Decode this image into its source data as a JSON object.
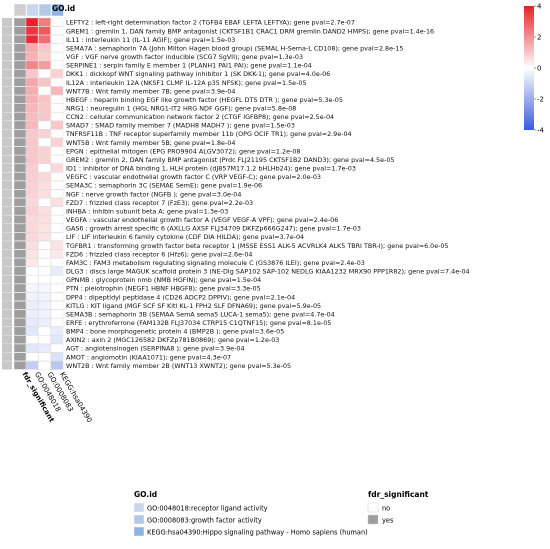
{
  "chart_data": {
    "type": "heatmap",
    "annotation_title": "GO.id",
    "columns": [
      "fdr_significant",
      "GO:0048018",
      "GO:0008083",
      "KEGG:hsa04390"
    ],
    "value_scale": {
      "min": -4,
      "max": 4,
      "ticks": [
        4,
        2,
        0,
        -2,
        -4
      ],
      "low_color": "#3b5bdb",
      "mid_color": "#ffffff",
      "high_color": "#e8202a"
    },
    "rows": [
      {
        "label": "LEFTY2 : left-right determination factor 2 (TGFB4 EBAF LEFTA LEFTYA); gene pval=2.7e-07",
        "fdr": "yes",
        "values": [
          4.0,
          2.4,
          0.0
        ],
        "group": "GO:0048018"
      },
      {
        "label": "GREM1 : gremlin 1, DAN family BMP antagonist (CKTSF1B1 CRAC1 DRM gremlin DAND2 HMPS); gene pval=1.4e-16",
        "fdr": "yes",
        "values": [
          3.6,
          3.0,
          0.0
        ],
        "group": "GO:0048018"
      },
      {
        "label": "IL11 : interleukin 11 (IL-11 AGIF); gene pval=1.5e-03",
        "fdr": "yes",
        "values": [
          3.8,
          2.6,
          0.0
        ],
        "group": "GO:0048018"
      },
      {
        "label": "SEMA7A : semaphorin 7A (John Milton Hagen blood group) (SEMAL H-Sema-L CD108); gene pval=2.8e-15",
        "fdr": "yes",
        "values": [
          1.5,
          1.0,
          0.0
        ],
        "group": "GO:0048018"
      },
      {
        "label": "VGF : VGF nerve growth factor inducible (SCG7 SgVII); gene pval=1.3e-03",
        "fdr": "yes",
        "values": [
          1.4,
          0.9,
          0.0
        ],
        "group": "GO:0048018"
      },
      {
        "label": "SERPINE1 : serpin family E member 1 (PLANH1 PAI1 PAI); gene pval=1.1e-04",
        "fdr": "yes",
        "values": [
          2.2,
          1.8,
          0.0
        ],
        "group": "GO:0048018"
      },
      {
        "label": "DKK1 : dickkopf WNT signaling pathway inhibitor 1 (SK DKK-1); gene pval=4.0e-06",
        "fdr": "yes",
        "values": [
          1.0,
          0.0,
          0.8
        ],
        "group": "GO:0048018"
      },
      {
        "label": "IL12A : interleukin 12A (NKSF1 CLMF IL-12A p35 NFSK); gene pval=1.5e-05",
        "fdr": "yes",
        "values": [
          1.6,
          1.1,
          0.0
        ],
        "group": "GO:0048018"
      },
      {
        "label": "WNT7B : Wnt family member 7B; gene pval=3.9e-04",
        "fdr": "yes",
        "values": [
          1.5,
          0.0,
          1.3
        ],
        "group": "GO:0048018"
      },
      {
        "label": "HBEGF : heparin binding EGF like growth factor (HEGFL DTS DTR ); gene pval=5.3e-05",
        "fdr": "yes",
        "values": [
          1.4,
          1.1,
          0.0
        ],
        "group": "GO:0048018"
      },
      {
        "label": "NRG1 : neuregulin 1 (HGL NRG1-IT2 HRG NDF GGF); gene pval=5.8e-08",
        "fdr": "yes",
        "values": [
          1.3,
          1.0,
          0.0
        ],
        "group": "GO:0048018"
      },
      {
        "label": "CCN2 : cellular communication network factor 2 (CTGF IGFBP8); gene pval=2.5e-04",
        "fdr": "yes",
        "values": [
          1.2,
          1.0,
          0.0
        ],
        "group": "GO:0048018"
      },
      {
        "label": "SMAD7 : SMAD family member 7 (MADH8 MADH7 ); gene pval=1.5e-03",
        "fdr": "yes",
        "values": [
          1.3,
          0.0,
          1.0
        ],
        "group": "GO:0048018"
      },
      {
        "label": "TNFRSF11B : TNF receptor superfamily member 11b (OPG OCIF TR1); gene pval=2.9e-04",
        "fdr": "yes",
        "values": [
          1.0,
          0.8,
          0.0
        ],
        "group": "GO:0048018"
      },
      {
        "label": "WNT5B : Wnt family member 5B; gene pval=1.8e-04",
        "fdr": "yes",
        "values": [
          1.0,
          0.0,
          0.8
        ],
        "group": "GO:0048018"
      },
      {
        "label": "EPGN : epithelial mitogen (EPG PRO9904 ALGV3072); gene pval=1.2e-08",
        "fdr": "yes",
        "values": [
          1.0,
          0.8,
          0.0
        ],
        "group": "GO:0048018"
      },
      {
        "label": "GREM2 : gremlin 2, DAN family BMP antagonist (Prdc FLJ21195 CKTSF1B2 DAND3); gene pval=4.5e-05",
        "fdr": "yes",
        "values": [
          1.0,
          0.8,
          0.0
        ],
        "group": "GO:0048018"
      },
      {
        "label": "ID1 : inhibitor of DNA binding 1, HLH protein (dJ857M17.1.2 bHLHb24); gene pval=1.7e-03",
        "fdr": "yes",
        "values": [
          0.9,
          0.0,
          0.7
        ],
        "group": "GO:0048018"
      },
      {
        "label": "VEGFC : vascular endothelial growth factor C (VRP VEGF-C); gene pval=2.0e-03",
        "fdr": "yes",
        "values": [
          0.9,
          0.7,
          0.0
        ],
        "group": "GO:0048018"
      },
      {
        "label": "SEMA3C : semaphorin 3C (SEMAE SemE); gene pval=1.9e-06",
        "fdr": "yes",
        "values": [
          0.8,
          0.6,
          0.0
        ],
        "group": "GO:0048018"
      },
      {
        "label": "NGF : nerve growth factor (NGFB ); gene pval=3.0e-04",
        "fdr": "yes",
        "values": [
          0.8,
          0.6,
          0.0
        ],
        "group": "GO:0048018"
      },
      {
        "label": "FZD7 : frizzled class receptor 7 (FzE3); gene pval=2.2e-03",
        "fdr": "yes",
        "values": [
          0.7,
          0.0,
          0.6
        ],
        "group": "GO:0048018"
      },
      {
        "label": "INHBA : inhibin subunit beta A; gene pval=1.3e-03",
        "fdr": "yes",
        "values": [
          0.8,
          0.6,
          0.0
        ],
        "group": "GO:0048018"
      },
      {
        "label": "VEGFA : vascular endothelial growth factor A (VEGF VEGF-A VPF); gene pval=2.4e-06",
        "fdr": "yes",
        "values": [
          0.7,
          0.6,
          0.0
        ],
        "group": "GO:0048018"
      },
      {
        "label": "GAS6 : growth arrest specific 6 (AXLLG AXSF FLJ34709 DKFZp666G247); gene pval=1.7e-03",
        "fdr": "yes",
        "values": [
          0.7,
          0.5,
          0.0
        ],
        "group": "GO:0048018"
      },
      {
        "label": "LIF : LIF interleukin 6 family cytokine (CDF DIA HILDA); gene pval=3.7e-04",
        "fdr": "yes",
        "values": [
          0.7,
          0.5,
          0.0
        ],
        "group": "GO:0048018"
      },
      {
        "label": "TGFBR1 : transforming growth factor beta receptor 1 (MSSE ESS1 ALK-5 ACVRLK4 ALK5 TBRI TBR-i); gene pval=6.0e-05",
        "fdr": "yes",
        "values": [
          0.6,
          0.0,
          0.5
        ],
        "group": "GO:0048018"
      },
      {
        "label": "FZD6 : frizzled class receptor 6 (Hfz6); gene pval=2.6e-04",
        "fdr": "yes",
        "values": [
          0.5,
          0.0,
          0.4
        ],
        "group": "GO:0048018"
      },
      {
        "label": "FAM3C : FAM3 metabolism regulating signaling molecule C (GS3876 ILEI); gene pval=2.4e-03",
        "fdr": "yes",
        "values": [
          0.4,
          0.0,
          0.0
        ],
        "group": "GO:0048018"
      },
      {
        "label": "DLG3 : discs large MAGUK scaffold protein 3 (NE-Dlg SAP102 SAP-102 NEDLG KIAA1232 MRX90 PPP1R82); gene pval=7.4e-04",
        "fdr": "yes",
        "values": [
          0.0,
          0.0,
          -0.5
        ],
        "group": "KEGG:hsa04390"
      },
      {
        "label": "GPNMB : glycoprotein nmb (NMB HGFIN); gene pval=1.5e-04",
        "fdr": "yes",
        "values": [
          0.0,
          0.0,
          0.0
        ],
        "group": "GO:0048018"
      },
      {
        "label": "PTN : pleiotrophin (NEGF1 HBNF HBGF8); gene pval=3.3e-05",
        "fdr": "yes",
        "values": [
          -0.2,
          -0.2,
          0.0
        ],
        "group": "GO:0048018"
      },
      {
        "label": "DPP4 : dipeptidyl peptidase 4 (CD26 ADCP2 DPPIV); gene pval=2.1e-04",
        "fdr": "yes",
        "values": [
          -0.3,
          -0.3,
          0.0
        ],
        "group": "GO:0048018"
      },
      {
        "label": "KITLG : KIT ligand (MGF SCF SF Kitl KL-1 FPH2 SLF DFNA69); gene pval=5.9e-05",
        "fdr": "yes",
        "values": [
          -0.4,
          -0.3,
          0.0
        ],
        "group": "GO:0048018"
      },
      {
        "label": "SEMA3B : semaphorin 3B (SEMAA SemA sema5 LUCA-1 sema5); gene pval=4.7e-04",
        "fdr": "yes",
        "values": [
          -0.4,
          -0.3,
          0.0
        ],
        "group": "GO:0048018"
      },
      {
        "label": "ERFE : erythroferrone (FAM132B FLJ37034 CTRP15 C1QTNF15); gene pval=8.1e-05",
        "fdr": "yes",
        "values": [
          -0.5,
          -0.4,
          0.0
        ],
        "group": "GO:0048018"
      },
      {
        "label": "BMP4 : bone morphogenetic protein 4 (BMP2B ); gene pval=3.6e-05",
        "fdr": "yes",
        "values": [
          -0.6,
          0.0,
          -0.5
        ],
        "group": "GO:0048018"
      },
      {
        "label": "AXIN2 : axin 2 (MGC126582 DKFZp781B0869); gene pval=1.2e-03",
        "fdr": "yes",
        "values": [
          0.0,
          0.0,
          -0.6
        ],
        "group": "KEGG:hsa04390"
      },
      {
        "label": "AGT : angiotensinogen (SERPINA8 ); gene pval=3.9e-04",
        "fdr": "yes",
        "values": [
          -0.6,
          -0.5,
          0.0
        ],
        "group": "GO:0048018"
      },
      {
        "label": "AMOT : angiomotin (KIAA1071); gene pval=4.3e-07",
        "fdr": "yes",
        "values": [
          0.0,
          0.0,
          -0.7
        ],
        "group": "KEGG:hsa04390"
      },
      {
        "label": "WNT2B : Wnt family member 2B (WNT13 XWNT2); gene pval=5.3e-05",
        "fdr": "yes",
        "values": [
          -1.2,
          0.0,
          -1.4
        ],
        "group": "GO:0048018"
      }
    ],
    "legends": {
      "go_id": {
        "title": "GO.id",
        "entries": [
          {
            "label": "GO:0048018:receptor ligand activity",
            "color": "#c9d6ee"
          },
          {
            "label": "GO:0008083:growth factor activity",
            "color": "#b3c9e6"
          },
          {
            "label": "KEGG:hsa04390:Hippo signaling pathway - Homo sapiens (human)",
            "color": "#8fb4e3"
          }
        ]
      },
      "fdr_significant": {
        "title": "fdr_significant",
        "entries": [
          {
            "label": "no",
            "color": "#ffffff"
          },
          {
            "label": "yes",
            "color": "#9e9e9e"
          }
        ]
      }
    }
  }
}
